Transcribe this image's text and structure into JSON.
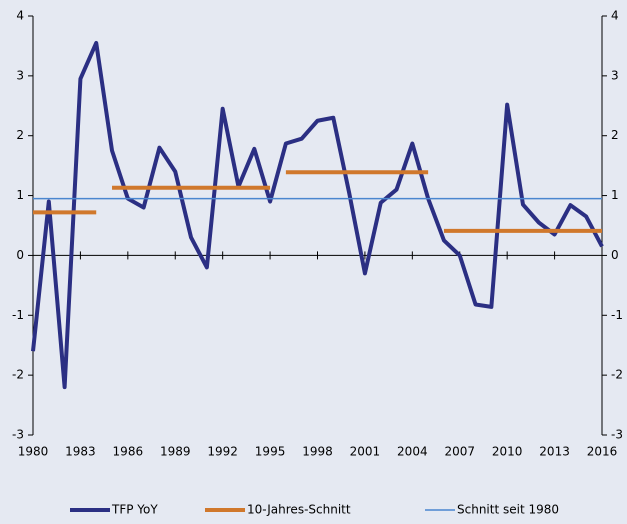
{
  "chart_data": {
    "type": "line",
    "x": [
      1980,
      1981,
      1982,
      1983,
      1984,
      1985,
      1986,
      1987,
      1988,
      1989,
      1990,
      1991,
      1992,
      1993,
      1994,
      1995,
      1996,
      1997,
      1998,
      1999,
      2000,
      2001,
      2002,
      2003,
      2004,
      2005,
      2006,
      2007,
      2008,
      2009,
      2010,
      2011,
      2012,
      2013,
      2014,
      2015,
      2016
    ],
    "series": [
      {
        "name": "TFP YoY",
        "color": "#2b2f83",
        "values": [
          -1.6,
          0.9,
          -2.2,
          2.95,
          3.55,
          1.75,
          0.95,
          0.8,
          1.8,
          1.4,
          0.3,
          -0.2,
          2.45,
          1.15,
          1.78,
          0.9,
          1.87,
          1.95,
          2.25,
          2.3,
          1.05,
          -0.3,
          0.88,
          1.1,
          1.87,
          0.95,
          0.25,
          0.0,
          -0.82,
          -0.86,
          2.52,
          0.85,
          0.55,
          0.35,
          0.84,
          0.65,
          0.15
        ]
      },
      {
        "name": "10-Jahres-Schnitt",
        "color": "#d0782c",
        "segments": [
          {
            "start": 1980,
            "end": 1984,
            "value": 0.72
          },
          {
            "start": 1985,
            "end": 1995,
            "value": 1.13
          },
          {
            "start": 1996,
            "end": 2005,
            "value": 1.39
          },
          {
            "start": 2006,
            "end": 2016,
            "value": 0.41
          }
        ]
      },
      {
        "name": "Schnitt seit 1980",
        "color": "#4a86cf",
        "value": 0.95
      }
    ],
    "xlim": [
      1980,
      2016
    ],
    "xticks": [
      1980,
      1983,
      1986,
      1989,
      1992,
      1995,
      1998,
      2001,
      2004,
      2007,
      2010,
      2013,
      2016
    ],
    "ylim": [
      -3,
      4
    ],
    "yticks": [
      -3,
      -2,
      -1,
      0,
      1,
      2,
      3,
      4
    ]
  }
}
